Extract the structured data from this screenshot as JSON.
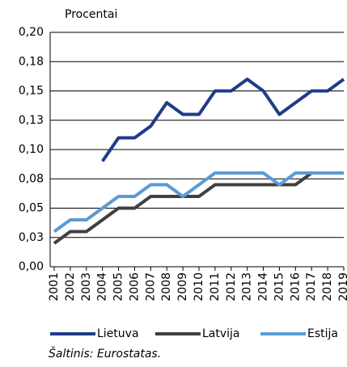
{
  "chart_data": {
    "type": "line",
    "y_label": "Procentai",
    "source": "Šaltinis: Eurostatas.",
    "categories": [
      "2001",
      "2002",
      "2003",
      "2004",
      "2005",
      "2006",
      "2007",
      "2008",
      "2009",
      "2010",
      "2011",
      "2012",
      "2013",
      "2014",
      "2015",
      "2016",
      "2017",
      "2018",
      "2019"
    ],
    "series": [
      {
        "name": "Lietuva",
        "color": "#1f3c88",
        "values": [
          null,
          null,
          null,
          0.09,
          0.11,
          0.11,
          0.12,
          0.14,
          0.13,
          0.13,
          0.15,
          0.15,
          0.16,
          0.15,
          0.13,
          0.14,
          0.15,
          0.15,
          0.16
        ]
      },
      {
        "name": "Latvija",
        "color": "#404040",
        "values": [
          0.02,
          0.03,
          0.03,
          0.04,
          0.05,
          0.05,
          0.06,
          0.06,
          0.06,
          0.06,
          0.07,
          0.07,
          0.07,
          0.07,
          0.07,
          0.07,
          0.08,
          0.08,
          0.08
        ]
      },
      {
        "name": "Estija",
        "color": "#5b9bd5",
        "values": [
          0.03,
          0.04,
          0.04,
          0.05,
          0.06,
          0.06,
          0.07,
          0.07,
          0.06,
          0.07,
          0.08,
          0.08,
          0.08,
          0.08,
          0.07,
          0.08,
          0.08,
          0.08,
          0.08
        ]
      }
    ],
    "ylim": [
      0,
      0.2
    ],
    "yticks": [
      {
        "value": 0,
        "label": "0,00"
      },
      {
        "value": 0.025,
        "label": "0,03"
      },
      {
        "value": 0.05,
        "label": "0,05"
      },
      {
        "value": 0.075,
        "label": "0,08"
      },
      {
        "value": 0.1,
        "label": "0,10"
      },
      {
        "value": 0.125,
        "label": "0,13"
      },
      {
        "value": 0.15,
        "label": "0,15"
      },
      {
        "value": 0.175,
        "label": "0,18"
      },
      {
        "value": 0.2,
        "label": "0,20"
      }
    ],
    "grid": true,
    "legend": "bottom"
  }
}
